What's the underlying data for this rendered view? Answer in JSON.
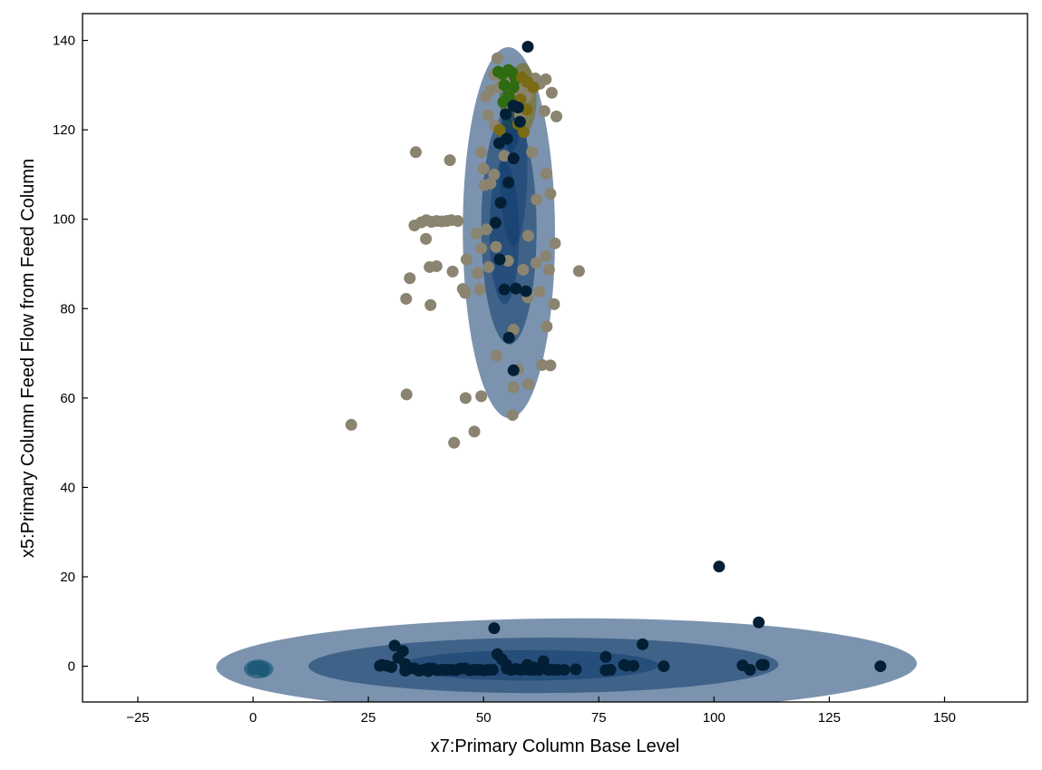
{
  "chart_data": {
    "type": "scatter",
    "xlabel": "x7:Primary Column Base Level",
    "ylabel": "x5:Primary Column Feed Flow from Feed Column",
    "xlim": [
      -37,
      168
    ],
    "ylim": [
      -8,
      146
    ],
    "xticks": [
      -25,
      0,
      25,
      50,
      75,
      100,
      125,
      150
    ],
    "yticks": [
      0,
      20,
      40,
      60,
      80,
      100,
      120,
      140
    ],
    "grid": false,
    "legend": "none",
    "colors": {
      "ellipse_fill": "#0e3a6b",
      "grey_points": "#8a8470",
      "dark_points": "#021f35",
      "green_points": "#2f6b10",
      "olive_points": "#7a6a12",
      "teal_points": "#1d5a78"
    },
    "ellipses": [
      {
        "cx": 68,
        "cy": 0.2,
        "rx": 76,
        "ry": 10.5,
        "rot": 0.3,
        "opacity": 0.55,
        "color": "#0e3a6b"
      },
      {
        "cx": 63,
        "cy": 0.2,
        "rx": 51,
        "ry": 6.2,
        "rot": 0.2,
        "opacity": 0.55,
        "color": "#0e3a6b"
      },
      {
        "cx": 60,
        "cy": 0.2,
        "rx": 28,
        "ry": 3.4,
        "rot": 0.1,
        "opacity": 0.5,
        "color": "#0e3a6b"
      },
      {
        "cx": 1.2,
        "cy": -0.6,
        "rx": 3.2,
        "ry": 2.1,
        "rot": 0,
        "opacity": 0.7,
        "color": "#1d5a78"
      },
      {
        "cx": 1.2,
        "cy": -0.6,
        "rx": 1.8,
        "ry": 1.3,
        "rot": 0,
        "opacity": 0.8,
        "color": "#1d5a78"
      },
      {
        "cx": 55.5,
        "cy": 97,
        "rx": 10,
        "ry": 41.5,
        "rot": 0.2,
        "opacity": 0.55,
        "color": "#0e3a6b"
      },
      {
        "cx": 55.5,
        "cy": 98,
        "rx": 6,
        "ry": 26,
        "rot": 0.2,
        "opacity": 0.55,
        "color": "#0e3a6b"
      },
      {
        "cx": 54.5,
        "cy": 97,
        "rx": 3.2,
        "ry": 16,
        "rot": 0.2,
        "opacity": 0.5,
        "color": "#0e3a6b"
      },
      {
        "cx": 56.5,
        "cy": 112,
        "rx": 3,
        "ry": 18,
        "rot": 0.1,
        "opacity": 0.45,
        "color": "#0e3a6b"
      },
      {
        "cx": 56,
        "cy": 127,
        "rx": 2.5,
        "ry": 7,
        "rot": 0.1,
        "opacity": 0.6,
        "color": "#2f6b10"
      },
      {
        "cx": 58.5,
        "cy": 127,
        "rx": 3,
        "ry": 8,
        "rot": 0.1,
        "opacity": 0.6,
        "color": "#7a6a12"
      },
      {
        "cx": 56,
        "cy": 124,
        "rx": 2,
        "ry": 9,
        "rot": 0.1,
        "opacity": 0.6,
        "color": "#0e3a6b"
      }
    ],
    "series": [
      {
        "color": "#8a8470",
        "points": [
          [
            21.3,
            54
          ],
          [
            33.3,
            60.8
          ],
          [
            33.2,
            82.2
          ],
          [
            34,
            86.8
          ],
          [
            35.3,
            115
          ],
          [
            35,
            98.6
          ],
          [
            36.5,
            99.3
          ],
          [
            37.6,
            99.8
          ],
          [
            38.7,
            99.4
          ],
          [
            39.8,
            99.6
          ],
          [
            40.9,
            99.5
          ],
          [
            42,
            99.6
          ],
          [
            43,
            99.8
          ],
          [
            44.4,
            99.6
          ],
          [
            37.5,
            95.6
          ],
          [
            38.3,
            89.3
          ],
          [
            39.8,
            89.5
          ],
          [
            38.5,
            80.8
          ],
          [
            42.7,
            113.2
          ],
          [
            43.3,
            88.3
          ],
          [
            43.6,
            50
          ],
          [
            46.1,
            60
          ],
          [
            45.5,
            84.4
          ],
          [
            46.3,
            91
          ],
          [
            48,
            52.5
          ],
          [
            48.5,
            96.8
          ],
          [
            49.5,
            115
          ],
          [
            50.5,
            127.4
          ],
          [
            51,
            123.3
          ],
          [
            51.5,
            128.8
          ],
          [
            52.3,
            132.3
          ],
          [
            50,
            111.3
          ],
          [
            51.5,
            108
          ],
          [
            50.2,
            107.6
          ],
          [
            49.2,
            84.3
          ],
          [
            51.1,
            89.3
          ],
          [
            52.4,
            121
          ],
          [
            53.3,
            129.5
          ],
          [
            54.3,
            131.5
          ],
          [
            55,
            130.2
          ],
          [
            56,
            128.4
          ],
          [
            57,
            130.6
          ],
          [
            58,
            128.5
          ],
          [
            59.3,
            127.5
          ],
          [
            60.2,
            130
          ],
          [
            61.2,
            131.5
          ],
          [
            62.2,
            130.3
          ],
          [
            63.5,
            131.3
          ],
          [
            64.8,
            128.3
          ],
          [
            65.8,
            123
          ],
          [
            63.2,
            124.2
          ],
          [
            63.6,
            110.2
          ],
          [
            64.5,
            105.7
          ],
          [
            65.5,
            94.6
          ],
          [
            64.2,
            88.7
          ],
          [
            63.5,
            91.8
          ],
          [
            61.4,
            90.2
          ],
          [
            62.1,
            83.8
          ],
          [
            63.7,
            76
          ],
          [
            62.7,
            67.4
          ],
          [
            64.5,
            67.3
          ],
          [
            59.7,
            63.1
          ],
          [
            56.5,
            62.4
          ],
          [
            56.3,
            56.2
          ],
          [
            65.3,
            81
          ],
          [
            70.7,
            88.4
          ],
          [
            52.7,
            93.8
          ],
          [
            52.3,
            110
          ],
          [
            54.5,
            114.2
          ],
          [
            55.3,
            90.7
          ],
          [
            56.5,
            75.3
          ],
          [
            59.7,
            96.3
          ],
          [
            60.5,
            115
          ],
          [
            61.5,
            104.4
          ],
          [
            50.6,
            97.7
          ],
          [
            49.5,
            93.5
          ],
          [
            48.7,
            88
          ],
          [
            58.6,
            88.7
          ],
          [
            59.6,
            82.5
          ],
          [
            57.5,
            66.4
          ],
          [
            52.8,
            69.5
          ],
          [
            49.5,
            60.4
          ],
          [
            46,
            83.5
          ],
          [
            55,
            125.7
          ],
          [
            57.9,
            123.4
          ],
          [
            53,
            136
          ]
        ]
      },
      {
        "color": "#2f6b10",
        "points": [
          [
            53.2,
            133
          ],
          [
            54.1,
            132.5
          ],
          [
            55.4,
            133.4
          ],
          [
            56.2,
            132.8
          ],
          [
            57,
            131.4
          ],
          [
            54.5,
            130
          ],
          [
            56.5,
            129.5
          ],
          [
            55.5,
            127.5
          ],
          [
            54.3,
            126.2
          ],
          [
            56.8,
            125.8
          ]
        ]
      },
      {
        "color": "#7a6a12",
        "points": [
          [
            58.3,
            131.7
          ],
          [
            59.5,
            130.7
          ],
          [
            60.8,
            129.5
          ],
          [
            58,
            126.8
          ],
          [
            59.3,
            124.5
          ],
          [
            57.5,
            121.3
          ],
          [
            58.7,
            119.5
          ],
          [
            53.5,
            120
          ]
        ]
      },
      {
        "color": "#021f35",
        "points": [
          [
            101.1,
            22.3
          ],
          [
            109.7,
            9.8
          ],
          [
            136.1,
            0
          ],
          [
            110.3,
            0.3
          ],
          [
            110.8,
            0.3
          ],
          [
            106.2,
            0.2
          ],
          [
            107.8,
            -0.8
          ],
          [
            89.1,
            0
          ],
          [
            84.5,
            4.9
          ],
          [
            82.5,
            0.1
          ],
          [
            81,
            0.1
          ],
          [
            80.5,
            0.3
          ],
          [
            77.5,
            -0.8
          ],
          [
            76.5,
            2.1
          ],
          [
            76.5,
            -0.9
          ],
          [
            70,
            -0.7
          ],
          [
            67.5,
            -0.8
          ],
          [
            66,
            -0.8
          ],
          [
            65,
            -0.8
          ],
          [
            64,
            -0.8
          ],
          [
            63,
            1.1
          ],
          [
            62,
            -0.8
          ],
          [
            61,
            -0.8
          ],
          [
            60,
            -0.8
          ],
          [
            59,
            -0.7
          ],
          [
            58,
            -0.8
          ],
          [
            57,
            -0.6
          ],
          [
            56,
            -0.8
          ],
          [
            55,
            0.3
          ],
          [
            54,
            1.5
          ],
          [
            53,
            2.7
          ],
          [
            52.3,
            8.5
          ],
          [
            52,
            -0.8
          ],
          [
            51,
            -0.8
          ],
          [
            50,
            -0.9
          ],
          [
            49,
            -0.8
          ],
          [
            48,
            -0.8
          ],
          [
            47,
            -0.9
          ],
          [
            46,
            -0.5
          ],
          [
            45,
            -0.5
          ],
          [
            44,
            -0.9
          ],
          [
            43,
            -0.8
          ],
          [
            42,
            -0.8
          ],
          [
            41,
            -0.8
          ],
          [
            40,
            -0.9
          ],
          [
            39,
            -0.5
          ],
          [
            38,
            -0.5
          ],
          [
            37,
            -0.8
          ],
          [
            36,
            -1
          ],
          [
            35,
            -0.5
          ],
          [
            34,
            -0.5
          ],
          [
            33,
            0.5
          ],
          [
            32.5,
            3.4
          ],
          [
            31.5,
            1.9
          ],
          [
            30.7,
            4.6
          ],
          [
            30,
            -0.2
          ],
          [
            29,
            0.1
          ],
          [
            28,
            0.3
          ],
          [
            27.5,
            0.1
          ],
          [
            38,
            -1.1
          ],
          [
            33,
            -1
          ],
          [
            55,
            -0.5
          ],
          [
            59.5,
            0.3
          ],
          [
            61,
            -0.3
          ],
          [
            55.5,
            73.5
          ],
          [
            56.5,
            66.2
          ],
          [
            54.5,
            84.3
          ],
          [
            57,
            84.5
          ],
          [
            59.2,
            83.9
          ],
          [
            53.5,
            91
          ],
          [
            52.6,
            99.2
          ],
          [
            53.7,
            103.7
          ],
          [
            55.4,
            108.2
          ],
          [
            56.5,
            113.6
          ],
          [
            55.1,
            118
          ],
          [
            54.8,
            123.5
          ],
          [
            56.5,
            125.4
          ],
          [
            57.9,
            121.8
          ],
          [
            53.4,
            117
          ],
          [
            59.6,
            138.6
          ],
          [
            57.5,
            125
          ]
        ]
      },
      {
        "color": "#1d5a78",
        "points": [
          [
            0,
            -0.6
          ],
          [
            0.6,
            -0.6
          ],
          [
            1.2,
            -0.6
          ],
          [
            1.8,
            -0.6
          ],
          [
            2.4,
            -0.6
          ],
          [
            0.3,
            -0.1
          ],
          [
            1.5,
            -0.1
          ],
          [
            2.2,
            -1.1
          ]
        ]
      }
    ]
  }
}
